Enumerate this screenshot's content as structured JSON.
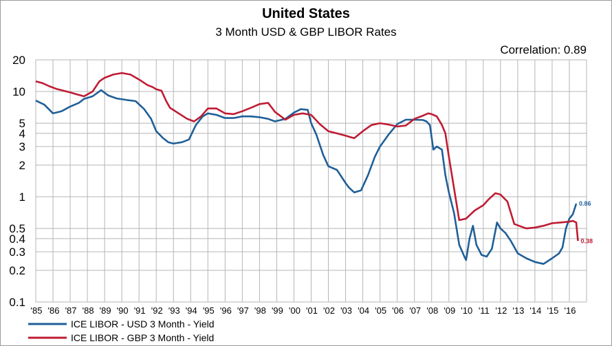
{
  "chart_data": {
    "type": "line",
    "title": "United States",
    "subtitle": "3 Month USD & GBP LIBOR Rates",
    "annotation": "Correlation: 0.89",
    "y_scale": "log",
    "ylim": [
      0.1,
      20
    ],
    "y_ticks": [
      0.1,
      0.2,
      0.3,
      0.4,
      0.5,
      1,
      2,
      3,
      4,
      5,
      10,
      20
    ],
    "y_tick_labels": [
      "0.1",
      "0.2",
      "0.3",
      "0.4",
      "0.5",
      "1",
      "2",
      "3",
      "4",
      "5",
      "10",
      "20"
    ],
    "xlim": [
      1985,
      2017
    ],
    "x_ticks": [
      1985,
      1986,
      1987,
      1988,
      1989,
      1990,
      1991,
      1992,
      1993,
      1994,
      1995,
      1996,
      1997,
      1998,
      1999,
      2000,
      2001,
      2002,
      2003,
      2004,
      2005,
      2006,
      2007,
      2008,
      2009,
      2010,
      2011,
      2012,
      2013,
      2014,
      2015,
      2016
    ],
    "x_tick_labels": [
      "'85",
      "'86",
      "'87",
      "'88",
      "'89",
      "'90",
      "'91",
      "'92",
      "'93",
      "'94",
      "'95",
      "'96",
      "'97",
      "'98",
      "'99",
      "'00",
      "'01",
      "'02",
      "'03",
      "'04",
      "'05",
      "'06",
      "'07",
      "'08",
      "'09",
      "'10",
      "'11",
      "'12",
      "'13",
      "'14",
      "'15",
      "'16"
    ],
    "grid": true,
    "legend_position": "bottom-left",
    "series": [
      {
        "name": "ICE LIBOR - USD 3 Month - Yield",
        "color": "#1f5f98",
        "end_label": "0.86",
        "x": [
          1985.0,
          1985.5,
          1986.0,
          1986.5,
          1987.0,
          1987.5,
          1987.8,
          1988.3,
          1988.8,
          1989.2,
          1989.7,
          1990.3,
          1990.8,
          1991.3,
          1991.7,
          1992.0,
          1992.4,
          1992.7,
          1993.0,
          1993.5,
          1993.9,
          1994.3,
          1994.7,
          1995.0,
          1995.5,
          1996.0,
          1996.5,
          1997.0,
          1997.5,
          1998.0,
          1998.5,
          1998.9,
          1999.5,
          2000.0,
          2000.4,
          2000.8,
          2001.0,
          2001.3,
          2001.7,
          2002.0,
          2002.5,
          2003.0,
          2003.2,
          2003.5,
          2003.9,
          2004.3,
          2004.7,
          2005.0,
          2005.5,
          2006.0,
          2006.5,
          2007.0,
          2007.5,
          2007.7,
          2007.9,
          2008.1,
          2008.3,
          2008.6,
          2008.8,
          2009.0,
          2009.3,
          2009.6,
          2009.9,
          2010.0,
          2010.2,
          2010.4,
          2010.6,
          2010.9,
          2011.2,
          2011.5,
          2011.8,
          2012.0,
          2012.3,
          2012.6,
          2013.0,
          2013.5,
          2014.0,
          2014.5,
          2015.0,
          2015.4,
          2015.6,
          2015.8,
          2016.0,
          2016.2,
          2016.4
        ],
        "values": [
          8.2,
          7.5,
          6.2,
          6.5,
          7.2,
          7.8,
          8.5,
          9.0,
          10.3,
          9.2,
          8.6,
          8.3,
          8.1,
          6.8,
          5.5,
          4.2,
          3.6,
          3.3,
          3.2,
          3.3,
          3.5,
          4.8,
          5.8,
          6.2,
          6.0,
          5.6,
          5.6,
          5.8,
          5.8,
          5.7,
          5.5,
          5.2,
          5.5,
          6.3,
          6.8,
          6.7,
          5.0,
          3.9,
          2.5,
          1.95,
          1.8,
          1.35,
          1.22,
          1.1,
          1.15,
          1.6,
          2.4,
          3.0,
          3.9,
          4.9,
          5.4,
          5.4,
          5.36,
          5.2,
          4.8,
          2.8,
          3.0,
          2.8,
          1.6,
          1.1,
          0.7,
          0.35,
          0.27,
          0.25,
          0.4,
          0.53,
          0.35,
          0.28,
          0.27,
          0.32,
          0.57,
          0.5,
          0.45,
          0.38,
          0.29,
          0.26,
          0.24,
          0.23,
          0.26,
          0.29,
          0.33,
          0.5,
          0.62,
          0.68,
          0.86
        ]
      },
      {
        "name": "ICE LIBOR - GBP 3 Month - Yield",
        "color": "#bf1b33",
        "end_label": "0.38",
        "x": [
          1985.0,
          1985.4,
          1985.8,
          1986.2,
          1986.6,
          1987.0,
          1987.4,
          1987.8,
          1988.3,
          1988.7,
          1989.0,
          1989.5,
          1990.0,
          1990.5,
          1991.0,
          1991.5,
          1991.8,
          1992.0,
          1992.3,
          1992.6,
          1992.8,
          1993.3,
          1993.8,
          1994.2,
          1994.6,
          1995.0,
          1995.5,
          1996.0,
          1996.5,
          1997.0,
          1997.5,
          1998.0,
          1998.5,
          1998.9,
          1999.5,
          2000.0,
          2000.5,
          2001.0,
          2001.5,
          2002.0,
          2002.5,
          2003.0,
          2003.5,
          2004.0,
          2004.5,
          2005.0,
          2005.5,
          2006.0,
          2006.5,
          2007.0,
          2007.5,
          2007.8,
          2008.0,
          2008.3,
          2008.6,
          2008.8,
          2009.0,
          2009.3,
          2009.6,
          2010.0,
          2010.5,
          2011.0,
          2011.3,
          2011.7,
          2012.0,
          2012.4,
          2012.8,
          2013.5,
          2014.0,
          2014.5,
          2015.0,
          2015.5,
          2016.0,
          2016.2,
          2016.4,
          2016.5
        ],
        "values": [
          12.5,
          12.0,
          11.2,
          10.6,
          10.2,
          9.8,
          9.4,
          9.0,
          10.0,
          12.5,
          13.5,
          14.5,
          15.0,
          14.5,
          13.0,
          11.5,
          11.0,
          10.5,
          10.2,
          8.0,
          7.0,
          6.2,
          5.5,
          5.2,
          5.8,
          6.9,
          6.9,
          6.2,
          6.1,
          6.5,
          7.0,
          7.6,
          7.8,
          6.4,
          5.4,
          6.0,
          6.2,
          6.0,
          4.9,
          4.2,
          4.0,
          3.8,
          3.6,
          4.2,
          4.8,
          5.0,
          4.85,
          4.65,
          4.75,
          5.5,
          5.9,
          6.2,
          6.1,
          5.8,
          4.8,
          4.0,
          2.4,
          1.2,
          0.6,
          0.62,
          0.74,
          0.83,
          0.94,
          1.08,
          1.05,
          0.9,
          0.55,
          0.5,
          0.51,
          0.53,
          0.56,
          0.57,
          0.58,
          0.59,
          0.57,
          0.38
        ]
      }
    ]
  }
}
